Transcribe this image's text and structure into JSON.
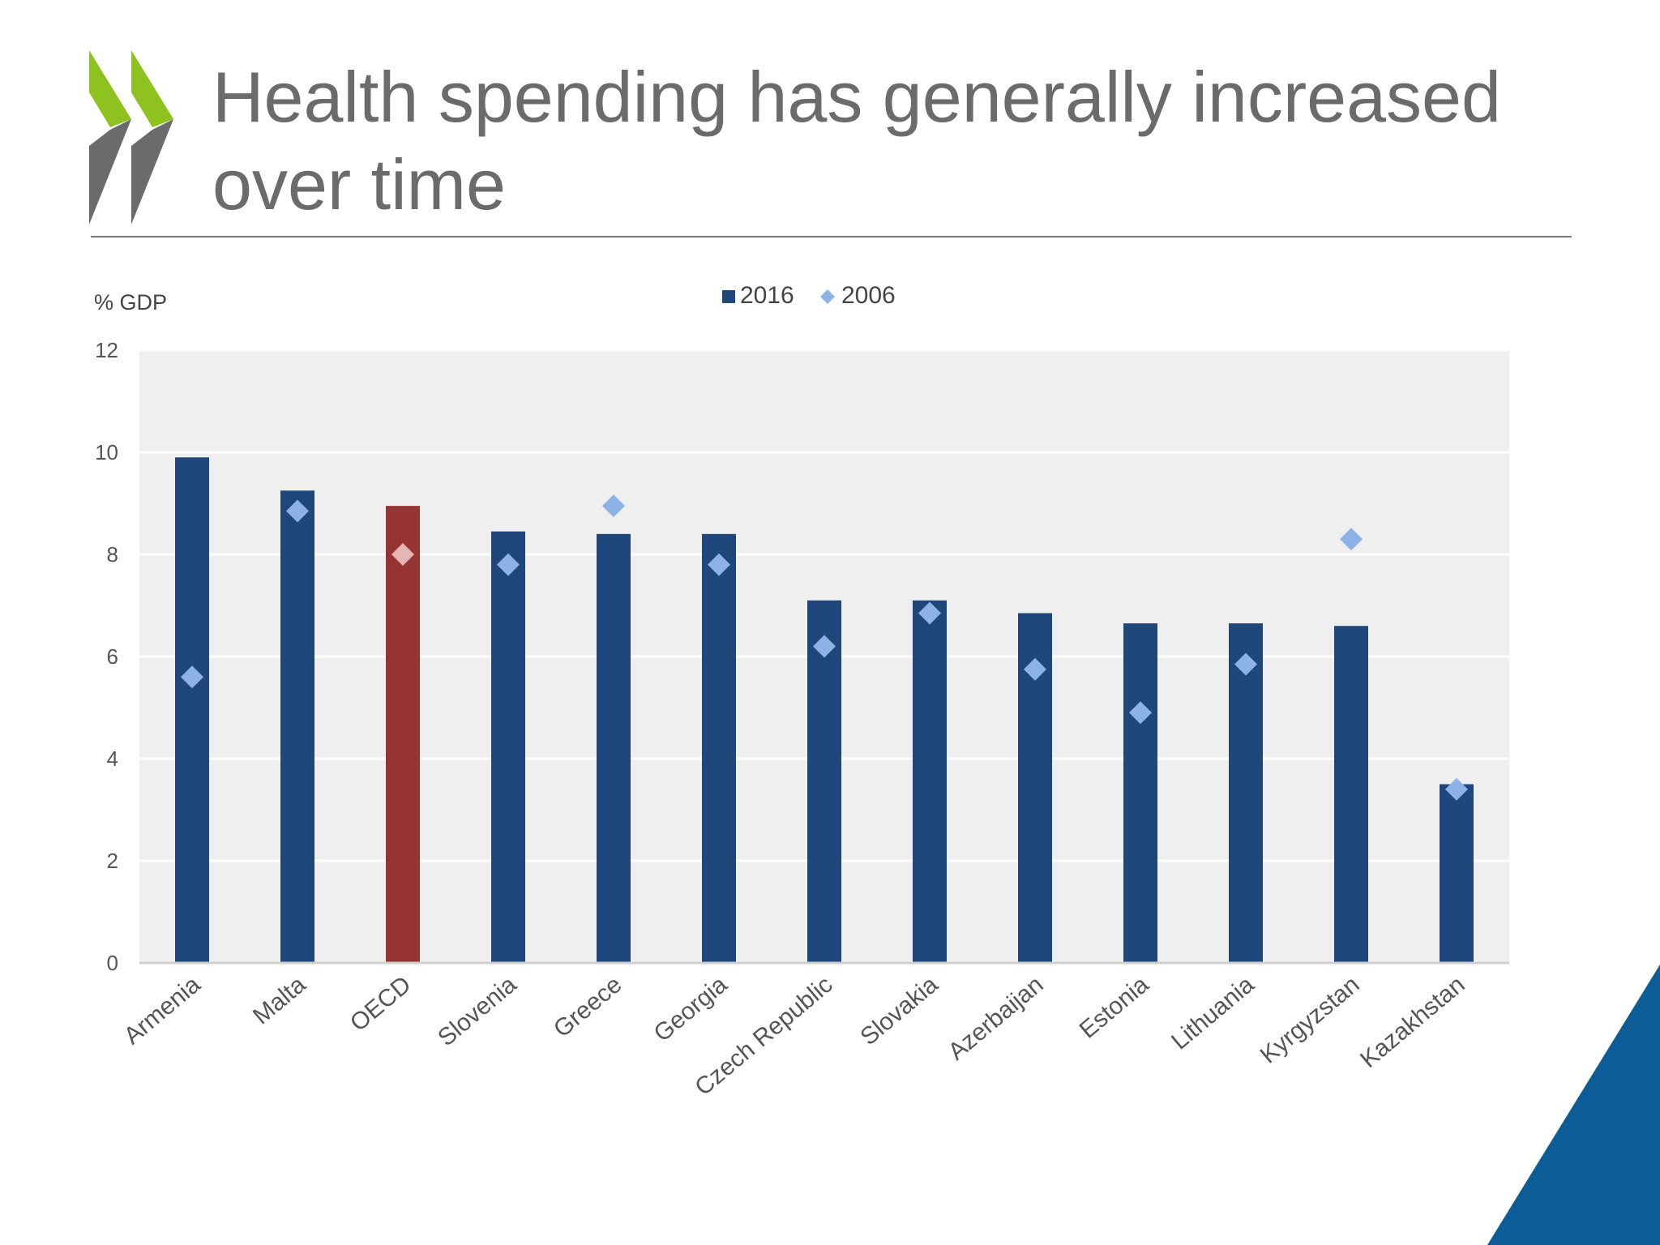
{
  "slide": {
    "title": "Health spending has generally increased over time"
  },
  "colors": {
    "bar": "#1f477c",
    "bar_highlight": "#963434",
    "marker": "#8db3e6",
    "marker_highlight": "#e5b6b6",
    "title": "#6b6b6b",
    "logo_green": "#8dc21f",
    "logo_gray": "#6b6b6b",
    "corner": "#0b5c97"
  },
  "chart_data": {
    "type": "bar",
    "title": "",
    "xlabel": "",
    "ylabel": "% GDP",
    "ylim": [
      0,
      12
    ],
    "yticks": [
      "0",
      "2",
      "4",
      "6",
      "8",
      "10",
      "12"
    ],
    "grid": true,
    "legend": "top-center",
    "highlight_category": "OECD",
    "categories": [
      "Armenia",
      "Malta",
      "OECD",
      "Slovenia",
      "Greece",
      "Georgia",
      "Czech Republic",
      "Slovakia",
      "Azerbaijan",
      "Estonia",
      "Lithuania",
      "Kyrgyzstan",
      "Kazakhstan"
    ],
    "series": [
      {
        "name": "2016",
        "kind": "bar",
        "values": [
          9.9,
          9.25,
          8.95,
          8.45,
          8.4,
          8.4,
          7.1,
          7.1,
          6.85,
          6.65,
          6.65,
          6.6,
          3.5
        ]
      },
      {
        "name": "2006",
        "kind": "diamond",
        "values": [
          5.6,
          8.85,
          8.0,
          7.8,
          8.95,
          7.8,
          6.2,
          6.85,
          5.75,
          4.9,
          5.85,
          8.3,
          3.4
        ]
      }
    ]
  }
}
